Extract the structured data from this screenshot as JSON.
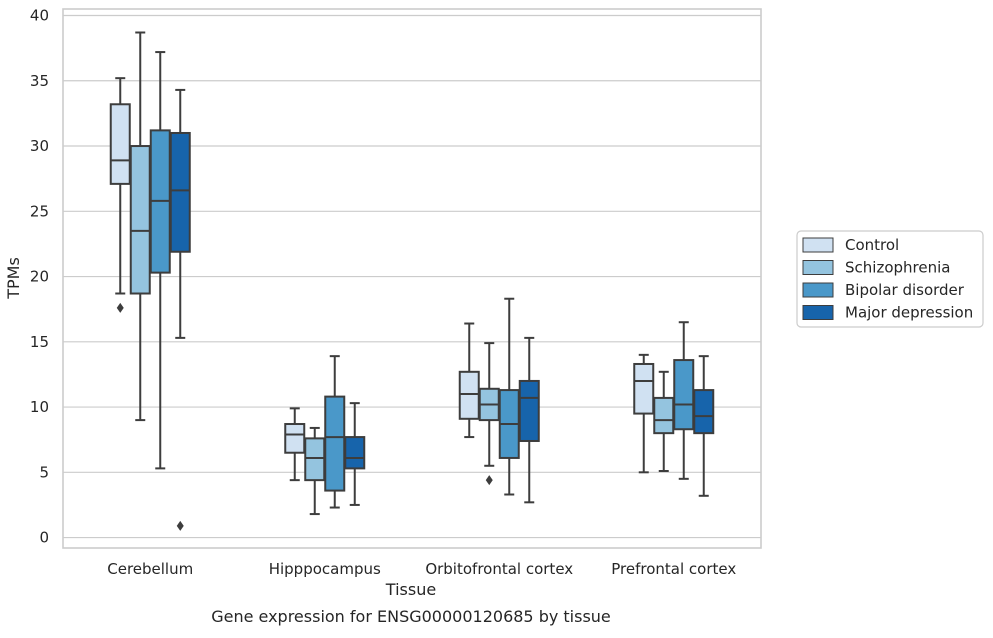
{
  "chart_data": {
    "type": "box",
    "caption": "Gene expression for ENSG00000120685 by tissue",
    "xlabel": "Tissue",
    "ylabel": "TPMs",
    "ylim": [
      -0.8,
      40.5
    ],
    "yticks": [
      0,
      5,
      10,
      15,
      20,
      25,
      30,
      35,
      40
    ],
    "grid": "horizontal",
    "legend_position": "right",
    "categories": [
      "Cerebellum",
      "Hipppocampus",
      "Orbitofrontal cortex",
      "Prefrontal cortex"
    ],
    "series": [
      {
        "name": "Control",
        "color": "#d0e1f2",
        "boxes": [
          {
            "whisker_low": 18.7,
            "q1": 27.1,
            "median": 28.9,
            "q3": 33.2,
            "whisker_high": 35.2,
            "outliers": [
              17.6
            ]
          },
          {
            "whisker_low": 4.4,
            "q1": 6.5,
            "median": 7.9,
            "q3": 8.7,
            "whisker_high": 9.9,
            "outliers": []
          },
          {
            "whisker_low": 7.7,
            "q1": 9.1,
            "median": 11.0,
            "q3": 12.7,
            "whisker_high": 16.4,
            "outliers": []
          },
          {
            "whisker_low": 5.0,
            "q1": 9.5,
            "median": 12.0,
            "q3": 13.3,
            "whisker_high": 14.0,
            "outliers": []
          }
        ]
      },
      {
        "name": "Schizophrenia",
        "color": "#94c4df",
        "boxes": [
          {
            "whisker_low": 9.0,
            "q1": 18.7,
            "median": 23.5,
            "q3": 30.0,
            "whisker_high": 38.7,
            "outliers": []
          },
          {
            "whisker_low": 1.8,
            "q1": 4.4,
            "median": 6.1,
            "q3": 7.6,
            "whisker_high": 8.4,
            "outliers": []
          },
          {
            "whisker_low": 5.5,
            "q1": 9.0,
            "median": 10.2,
            "q3": 11.4,
            "whisker_high": 14.9,
            "outliers": [
              4.4
            ]
          },
          {
            "whisker_low": 5.1,
            "q1": 8.0,
            "median": 9.0,
            "q3": 10.7,
            "whisker_high": 12.7,
            "outliers": []
          }
        ]
      },
      {
        "name": "Bipolar disorder",
        "color": "#4a98c9",
        "boxes": [
          {
            "whisker_low": 5.3,
            "q1": 20.3,
            "median": 25.8,
            "q3": 31.2,
            "whisker_high": 37.2,
            "outliers": []
          },
          {
            "whisker_low": 2.3,
            "q1": 3.6,
            "median": 7.7,
            "q3": 10.8,
            "whisker_high": 13.9,
            "outliers": []
          },
          {
            "whisker_low": 3.3,
            "q1": 6.1,
            "median": 8.7,
            "q3": 11.3,
            "whisker_high": 18.3,
            "outliers": []
          },
          {
            "whisker_low": 4.5,
            "q1": 8.3,
            "median": 10.2,
            "q3": 13.6,
            "whisker_high": 16.5,
            "outliers": []
          }
        ]
      },
      {
        "name": "Major depression",
        "color": "#1764ab",
        "boxes": [
          {
            "whisker_low": 15.3,
            "q1": 21.9,
            "median": 26.6,
            "q3": 31.0,
            "whisker_high": 34.3,
            "outliers": [
              0.9
            ]
          },
          {
            "whisker_low": 2.5,
            "q1": 5.3,
            "median": 6.1,
            "q3": 7.7,
            "whisker_high": 10.3,
            "outliers": []
          },
          {
            "whisker_low": 2.7,
            "q1": 7.4,
            "median": 10.7,
            "q3": 12.0,
            "whisker_high": 15.3,
            "outliers": []
          },
          {
            "whisker_low": 3.2,
            "q1": 8.0,
            "median": 9.3,
            "q3": 11.3,
            "whisker_high": 13.9,
            "outliers": []
          }
        ]
      }
    ]
  }
}
